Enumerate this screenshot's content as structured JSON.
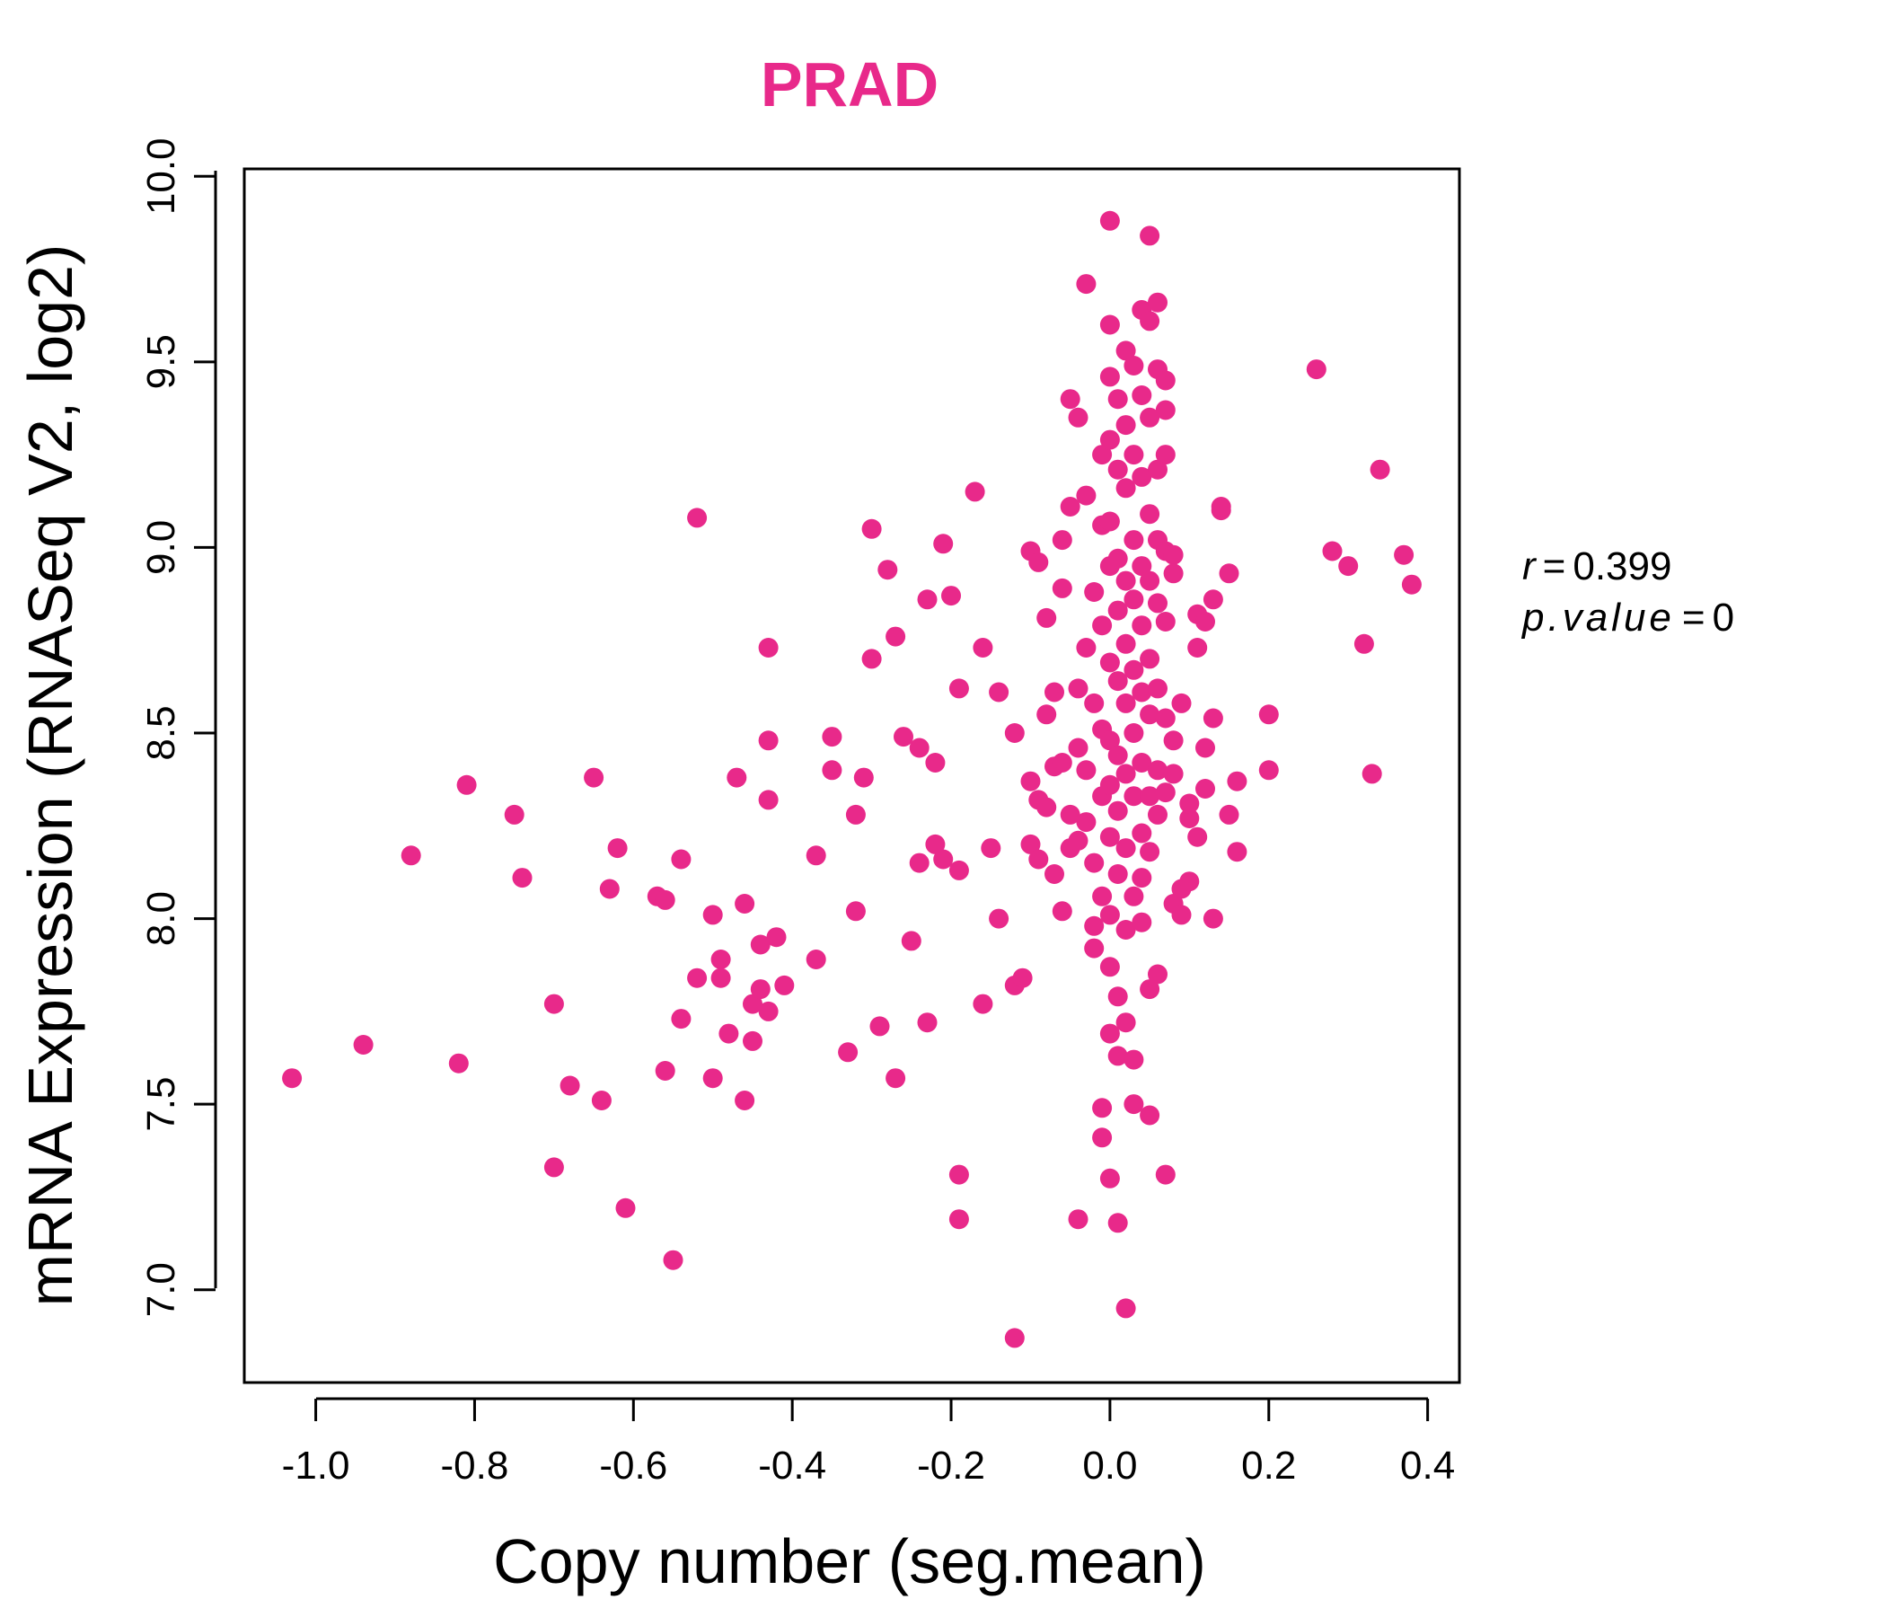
{
  "chart_data": {
    "type": "scatter",
    "title": "PRAD",
    "xlabel": "Copy number (seg.mean)",
    "ylabel": "mRNA Expression (RNASeq V2, log2)",
    "xlim": [
      -1.09,
      0.44
    ],
    "ylim": [
      6.75,
      10.02
    ],
    "x_ticks": [
      -1.0,
      -0.8,
      -0.6,
      -0.4,
      -0.2,
      0.0,
      0.2,
      0.4
    ],
    "x_tick_labels": [
      "-1.0",
      "-0.8",
      "-0.6",
      "-0.4",
      "-0.2",
      "0.0",
      "0.2",
      "0.4"
    ],
    "y_ticks": [
      7.0,
      7.5,
      8.0,
      8.5,
      9.0,
      9.5,
      10.0
    ],
    "y_tick_labels": [
      "7.0",
      "7.5",
      "8.0",
      "8.5",
      "9.0",
      "9.5",
      "10.0"
    ],
    "grid": false,
    "legend": "none",
    "point_color": "#E8298A",
    "title_color": "#E8298A",
    "stats": {
      "r_label": "r",
      "r_value": "0.399",
      "p_label": "p.value",
      "p_value": "0",
      "equals": "="
    },
    "points": [
      [
        -1.03,
        7.57
      ],
      [
        -0.94,
        7.66
      ],
      [
        -0.88,
        8.17
      ],
      [
        -0.82,
        7.61
      ],
      [
        -0.81,
        8.36
      ],
      [
        -0.75,
        8.28
      ],
      [
        -0.74,
        8.11
      ],
      [
        -0.7,
        7.77
      ],
      [
        -0.7,
        7.33
      ],
      [
        -0.68,
        7.55
      ],
      [
        -0.65,
        8.38
      ],
      [
        -0.64,
        7.51
      ],
      [
        -0.63,
        8.08
      ],
      [
        -0.62,
        8.19
      ],
      [
        -0.61,
        7.22
      ],
      [
        -0.57,
        8.06
      ],
      [
        -0.56,
        8.05
      ],
      [
        -0.56,
        7.59
      ],
      [
        -0.55,
        7.08
      ],
      [
        -0.54,
        8.16
      ],
      [
        -0.54,
        7.73
      ],
      [
        -0.52,
        9.08
      ],
      [
        -0.52,
        7.84
      ],
      [
        -0.5,
        8.01
      ],
      [
        -0.5,
        7.57
      ],
      [
        -0.49,
        7.89
      ],
      [
        -0.49,
        7.84
      ],
      [
        -0.48,
        7.69
      ],
      [
        -0.47,
        8.38
      ],
      [
        -0.46,
        8.04
      ],
      [
        -0.46,
        7.51
      ],
      [
        -0.45,
        7.77
      ],
      [
        -0.45,
        7.67
      ],
      [
        -0.44,
        7.93
      ],
      [
        -0.44,
        7.81
      ],
      [
        -0.43,
        7.75
      ],
      [
        -0.43,
        8.73
      ],
      [
        -0.43,
        8.48
      ],
      [
        -0.43,
        8.32
      ],
      [
        -0.42,
        7.95
      ],
      [
        -0.41,
        7.82
      ],
      [
        -0.37,
        7.89
      ],
      [
        -0.37,
        8.17
      ],
      [
        -0.35,
        8.49
      ],
      [
        -0.35,
        8.4
      ],
      [
        -0.33,
        7.64
      ],
      [
        -0.32,
        8.28
      ],
      [
        -0.32,
        8.02
      ],
      [
        -0.31,
        8.38
      ],
      [
        -0.3,
        9.05
      ],
      [
        -0.3,
        8.7
      ],
      [
        -0.29,
        7.71
      ],
      [
        -0.28,
        8.94
      ],
      [
        -0.27,
        8.76
      ],
      [
        -0.27,
        7.57
      ],
      [
        -0.26,
        8.49
      ],
      [
        -0.25,
        7.94
      ],
      [
        -0.24,
        8.46
      ],
      [
        -0.24,
        8.15
      ],
      [
        -0.23,
        8.86
      ],
      [
        -0.23,
        7.72
      ],
      [
        -0.22,
        8.2
      ],
      [
        -0.22,
        8.42
      ],
      [
        -0.21,
        9.01
      ],
      [
        -0.21,
        8.16
      ],
      [
        -0.2,
        8.87
      ],
      [
        -0.19,
        8.62
      ],
      [
        -0.19,
        8.13
      ],
      [
        -0.19,
        7.31
      ],
      [
        -0.19,
        7.19
      ],
      [
        -0.17,
        9.15
      ],
      [
        -0.16,
        8.73
      ],
      [
        -0.16,
        7.77
      ],
      [
        -0.15,
        8.19
      ],
      [
        -0.14,
        8.0
      ],
      [
        -0.14,
        8.61
      ],
      [
        -0.12,
        8.5
      ],
      [
        -0.12,
        7.82
      ],
      [
        -0.12,
        6.87
      ],
      [
        -0.11,
        7.84
      ],
      [
        -0.1,
        8.99
      ],
      [
        -0.1,
        8.37
      ],
      [
        -0.1,
        8.2
      ],
      [
        -0.09,
        8.96
      ],
      [
        -0.09,
        8.32
      ],
      [
        -0.09,
        8.16
      ],
      [
        -0.08,
        8.81
      ],
      [
        -0.08,
        8.55
      ],
      [
        -0.08,
        8.3
      ],
      [
        -0.07,
        8.61
      ],
      [
        -0.07,
        8.41
      ],
      [
        -0.07,
        8.12
      ],
      [
        -0.06,
        9.02
      ],
      [
        -0.06,
        8.89
      ],
      [
        -0.06,
        8.42
      ],
      [
        -0.06,
        8.02
      ],
      [
        -0.05,
        8.28
      ],
      [
        -0.05,
        8.19
      ],
      [
        -0.05,
        9.4
      ],
      [
        -0.05,
        9.11
      ],
      [
        -0.04,
        9.35
      ],
      [
        -0.04,
        8.62
      ],
      [
        -0.04,
        8.46
      ],
      [
        -0.04,
        8.21
      ],
      [
        -0.04,
        7.19
      ],
      [
        -0.03,
        9.71
      ],
      [
        -0.03,
        9.14
      ],
      [
        -0.03,
        8.73
      ],
      [
        -0.03,
        8.4
      ],
      [
        -0.03,
        8.26
      ],
      [
        -0.02,
        8.88
      ],
      [
        -0.02,
        8.58
      ],
      [
        -0.02,
        8.15
      ],
      [
        -0.02,
        7.98
      ],
      [
        -0.02,
        7.92
      ],
      [
        -0.01,
        9.25
      ],
      [
        -0.01,
        9.06
      ],
      [
        -0.01,
        8.79
      ],
      [
        -0.01,
        8.51
      ],
      [
        -0.01,
        8.33
      ],
      [
        -0.01,
        8.06
      ],
      [
        -0.01,
        7.49
      ],
      [
        -0.01,
        7.41
      ],
      [
        0.0,
        9.6
      ],
      [
        0.0,
        9.46
      ],
      [
        0.0,
        9.29
      ],
      [
        0.0,
        9.07
      ],
      [
        0.0,
        8.95
      ],
      [
        0.0,
        8.69
      ],
      [
        0.0,
        8.48
      ],
      [
        0.0,
        8.36
      ],
      [
        0.0,
        8.22
      ],
      [
        0.0,
        8.01
      ],
      [
        0.0,
        7.87
      ],
      [
        0.0,
        7.69
      ],
      [
        0.0,
        7.3
      ],
      [
        0.0,
        9.88
      ],
      [
        0.01,
        9.4
      ],
      [
        0.01,
        9.21
      ],
      [
        0.01,
        8.97
      ],
      [
        0.01,
        8.83
      ],
      [
        0.01,
        8.64
      ],
      [
        0.01,
        8.44
      ],
      [
        0.01,
        8.29
      ],
      [
        0.01,
        8.12
      ],
      [
        0.01,
        7.79
      ],
      [
        0.01,
        7.63
      ],
      [
        0.01,
        7.18
      ],
      [
        0.02,
        9.53
      ],
      [
        0.02,
        9.33
      ],
      [
        0.02,
        9.16
      ],
      [
        0.02,
        8.91
      ],
      [
        0.02,
        8.74
      ],
      [
        0.02,
        8.58
      ],
      [
        0.02,
        8.39
      ],
      [
        0.02,
        8.19
      ],
      [
        0.02,
        7.97
      ],
      [
        0.02,
        7.72
      ],
      [
        0.02,
        6.95
      ],
      [
        0.03,
        9.49
      ],
      [
        0.03,
        9.25
      ],
      [
        0.03,
        9.02
      ],
      [
        0.03,
        8.86
      ],
      [
        0.03,
        8.67
      ],
      [
        0.03,
        8.5
      ],
      [
        0.03,
        8.33
      ],
      [
        0.03,
        8.06
      ],
      [
        0.03,
        7.5
      ],
      [
        0.03,
        7.62
      ],
      [
        0.04,
        9.64
      ],
      [
        0.04,
        9.41
      ],
      [
        0.04,
        9.19
      ],
      [
        0.04,
        8.95
      ],
      [
        0.04,
        8.79
      ],
      [
        0.04,
        8.61
      ],
      [
        0.04,
        8.42
      ],
      [
        0.04,
        8.23
      ],
      [
        0.04,
        8.11
      ],
      [
        0.04,
        7.99
      ],
      [
        0.05,
        9.84
      ],
      [
        0.05,
        9.61
      ],
      [
        0.05,
        9.35
      ],
      [
        0.05,
        9.09
      ],
      [
        0.05,
        8.91
      ],
      [
        0.05,
        8.7
      ],
      [
        0.05,
        8.55
      ],
      [
        0.05,
        8.33
      ],
      [
        0.05,
        8.18
      ],
      [
        0.05,
        7.81
      ],
      [
        0.05,
        7.47
      ],
      [
        0.06,
        9.66
      ],
      [
        0.06,
        9.48
      ],
      [
        0.06,
        9.21
      ],
      [
        0.06,
        9.02
      ],
      [
        0.06,
        8.85
      ],
      [
        0.06,
        8.62
      ],
      [
        0.06,
        8.4
      ],
      [
        0.06,
        8.28
      ],
      [
        0.06,
        7.85
      ],
      [
        0.07,
        9.45
      ],
      [
        0.07,
        9.37
      ],
      [
        0.07,
        9.25
      ],
      [
        0.07,
        8.99
      ],
      [
        0.07,
        8.8
      ],
      [
        0.07,
        8.54
      ],
      [
        0.07,
        8.34
      ],
      [
        0.07,
        7.31
      ],
      [
        0.08,
        8.98
      ],
      [
        0.08,
        8.93
      ],
      [
        0.08,
        8.48
      ],
      [
        0.08,
        8.39
      ],
      [
        0.08,
        8.04
      ],
      [
        0.09,
        8.58
      ],
      [
        0.09,
        8.08
      ],
      [
        0.09,
        8.01
      ],
      [
        0.1,
        8.27
      ],
      [
        0.1,
        8.1
      ],
      [
        0.1,
        8.31
      ],
      [
        0.11,
        8.82
      ],
      [
        0.11,
        8.73
      ],
      [
        0.11,
        8.22
      ],
      [
        0.12,
        8.46
      ],
      [
        0.12,
        8.35
      ],
      [
        0.12,
        8.8
      ],
      [
        0.13,
        8.54
      ],
      [
        0.13,
        8.0
      ],
      [
        0.13,
        8.86
      ],
      [
        0.14,
        9.1
      ],
      [
        0.14,
        9.11
      ],
      [
        0.15,
        8.93
      ],
      [
        0.15,
        8.28
      ],
      [
        0.16,
        8.37
      ],
      [
        0.16,
        8.18
      ],
      [
        0.2,
        8.55
      ],
      [
        0.2,
        8.4
      ],
      [
        0.26,
        9.48
      ],
      [
        0.28,
        8.99
      ],
      [
        0.3,
        8.95
      ],
      [
        0.32,
        8.74
      ],
      [
        0.33,
        8.39
      ],
      [
        0.34,
        9.21
      ],
      [
        0.37,
        8.98
      ],
      [
        0.38,
        8.9
      ]
    ]
  }
}
